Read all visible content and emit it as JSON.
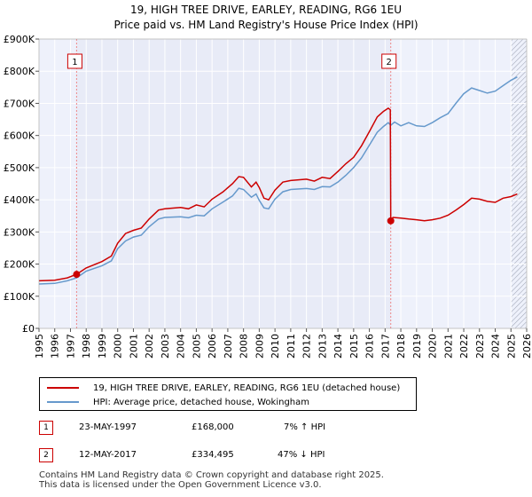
{
  "title_line1": "19, HIGH TREE DRIVE, EARLEY, READING, RG6 1EU",
  "title_line2": "Price paid vs. HM Land Registry's House Price Index (HPI)",
  "colors": {
    "price_paid": "#cc0000",
    "hpi": "#6699cc",
    "plot_bg": "#eef1fb",
    "shade": "#e8ebf7"
  },
  "legend": {
    "price_paid": "19, HIGH TREE DRIVE, EARLEY, READING, RG6 1EU (detached house)",
    "hpi": "HPI: Average price, detached house, Wokingham"
  },
  "transactions": [
    {
      "num": "1",
      "date": "23-MAY-1997",
      "price": "£168,000",
      "hpi_change": "7% ↑ HPI"
    },
    {
      "num": "2",
      "date": "12-MAY-2017",
      "price": "£334,495",
      "hpi_change": "47% ↓ HPI"
    }
  ],
  "footer_line1": "Contains HM Land Registry data © Crown copyright and database right 2025.",
  "footer_line2": "This data is licensed under the Open Government Licence v3.0.",
  "chart_data": {
    "type": "line",
    "x_unit": "year",
    "xlim": [
      1995,
      2026
    ],
    "ylim": [
      0,
      900000
    ],
    "x_ticks": [
      1995,
      1996,
      1997,
      1998,
      1999,
      2000,
      2001,
      2002,
      2003,
      2004,
      2005,
      2006,
      2007,
      2008,
      2009,
      2010,
      2011,
      2012,
      2013,
      2014,
      2015,
      2016,
      2017,
      2018,
      2019,
      2020,
      2021,
      2022,
      2023,
      2024,
      2025,
      2026
    ],
    "y_ticks": [
      {
        "value": 0,
        "label": "£0"
      },
      {
        "value": 100000,
        "label": "£100K"
      },
      {
        "value": 200000,
        "label": "£200K"
      },
      {
        "value": 300000,
        "label": "£300K"
      },
      {
        "value": 400000,
        "label": "£400K"
      },
      {
        "value": 500000,
        "label": "£500K"
      },
      {
        "value": 600000,
        "label": "£600K"
      },
      {
        "value": 700000,
        "label": "£700K"
      },
      {
        "value": 800000,
        "label": "£800K"
      },
      {
        "value": 900000,
        "label": "£900K"
      }
    ],
    "grid": true,
    "hatched_future_from": 2025.0,
    "shaded_range": [
      1997.39,
      2017.36
    ],
    "sales": [
      {
        "label": "1",
        "x": 1997.39,
        "y": 168000
      },
      {
        "label": "2",
        "x": 2017.36,
        "y": 334495
      }
    ],
    "series": [
      {
        "name": "price_paid",
        "points": [
          [
            1995.0,
            148000
          ],
          [
            1996.0,
            150000
          ],
          [
            1996.8,
            157000
          ],
          [
            1997.39,
            168000
          ],
          [
            1998.0,
            188000
          ],
          [
            1999.0,
            208000
          ],
          [
            1999.6,
            225000
          ],
          [
            2000.0,
            265000
          ],
          [
            2000.5,
            295000
          ],
          [
            2001.0,
            305000
          ],
          [
            2001.5,
            312000
          ],
          [
            2002.0,
            340000
          ],
          [
            2002.6,
            368000
          ],
          [
            2003.0,
            372000
          ],
          [
            2004.0,
            376000
          ],
          [
            2004.5,
            372000
          ],
          [
            2005.0,
            384000
          ],
          [
            2005.5,
            378000
          ],
          [
            2006.0,
            402000
          ],
          [
            2006.7,
            425000
          ],
          [
            2007.3,
            450000
          ],
          [
            2007.7,
            472000
          ],
          [
            2008.0,
            470000
          ],
          [
            2008.5,
            440000
          ],
          [
            2008.8,
            455000
          ],
          [
            2009.0,
            438000
          ],
          [
            2009.3,
            405000
          ],
          [
            2009.6,
            400000
          ],
          [
            2010.0,
            430000
          ],
          [
            2010.5,
            455000
          ],
          [
            2011.0,
            460000
          ],
          [
            2012.0,
            464000
          ],
          [
            2012.5,
            458000
          ],
          [
            2013.0,
            470000
          ],
          [
            2013.5,
            466000
          ],
          [
            2014.0,
            488000
          ],
          [
            2014.5,
            512000
          ],
          [
            2015.0,
            532000
          ],
          [
            2015.5,
            568000
          ],
          [
            2016.0,
            612000
          ],
          [
            2016.5,
            658000
          ],
          [
            2016.9,
            675000
          ],
          [
            2017.2,
            685000
          ],
          [
            2017.33,
            680000
          ],
          [
            2017.36,
            334495
          ],
          [
            2017.5,
            345000
          ],
          [
            2018.0,
            343000
          ],
          [
            2018.5,
            340000
          ],
          [
            2019.0,
            338000
          ],
          [
            2019.5,
            335000
          ],
          [
            2020.0,
            338000
          ],
          [
            2020.5,
            343000
          ],
          [
            2021.0,
            352000
          ],
          [
            2021.5,
            368000
          ],
          [
            2022.0,
            385000
          ],
          [
            2022.5,
            405000
          ],
          [
            2023.0,
            402000
          ],
          [
            2023.5,
            395000
          ],
          [
            2024.0,
            392000
          ],
          [
            2024.5,
            405000
          ],
          [
            2025.0,
            410000
          ],
          [
            2025.4,
            418000
          ]
        ]
      },
      {
        "name": "hpi",
        "points": [
          [
            1995.0,
            138000
          ],
          [
            1996.0,
            140000
          ],
          [
            1996.8,
            148000
          ],
          [
            1997.39,
            157000
          ],
          [
            1998.0,
            178000
          ],
          [
            1999.0,
            195000
          ],
          [
            1999.6,
            210000
          ],
          [
            2000.0,
            248000
          ],
          [
            2000.5,
            272000
          ],
          [
            2001.0,
            284000
          ],
          [
            2001.5,
            290000
          ],
          [
            2002.0,
            316000
          ],
          [
            2002.6,
            340000
          ],
          [
            2003.0,
            345000
          ],
          [
            2004.0,
            347000
          ],
          [
            2004.5,
            344000
          ],
          [
            2005.0,
            352000
          ],
          [
            2005.5,
            350000
          ],
          [
            2006.0,
            372000
          ],
          [
            2006.7,
            393000
          ],
          [
            2007.3,
            412000
          ],
          [
            2007.7,
            436000
          ],
          [
            2008.0,
            432000
          ],
          [
            2008.5,
            408000
          ],
          [
            2008.8,
            418000
          ],
          [
            2009.0,
            398000
          ],
          [
            2009.3,
            375000
          ],
          [
            2009.6,
            372000
          ],
          [
            2010.0,
            402000
          ],
          [
            2010.5,
            425000
          ],
          [
            2011.0,
            432000
          ],
          [
            2012.0,
            435000
          ],
          [
            2012.5,
            432000
          ],
          [
            2013.0,
            441000
          ],
          [
            2013.5,
            440000
          ],
          [
            2014.0,
            455000
          ],
          [
            2014.5,
            476000
          ],
          [
            2015.0,
            500000
          ],
          [
            2015.5,
            530000
          ],
          [
            2016.0,
            570000
          ],
          [
            2016.5,
            610000
          ],
          [
            2016.9,
            628000
          ],
          [
            2017.2,
            640000
          ],
          [
            2017.36,
            632000
          ],
          [
            2017.6,
            642000
          ],
          [
            2018.0,
            630000
          ],
          [
            2018.5,
            640000
          ],
          [
            2019.0,
            630000
          ],
          [
            2019.5,
            628000
          ],
          [
            2020.0,
            640000
          ],
          [
            2020.5,
            655000
          ],
          [
            2021.0,
            668000
          ],
          [
            2021.5,
            700000
          ],
          [
            2022.0,
            730000
          ],
          [
            2022.5,
            748000
          ],
          [
            2023.0,
            740000
          ],
          [
            2023.5,
            732000
          ],
          [
            2024.0,
            738000
          ],
          [
            2024.5,
            755000
          ],
          [
            2025.0,
            772000
          ],
          [
            2025.4,
            782000
          ]
        ]
      }
    ]
  }
}
